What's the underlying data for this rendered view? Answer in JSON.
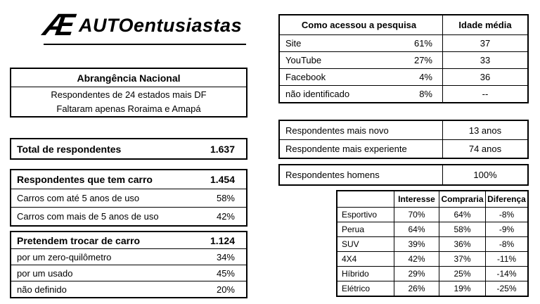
{
  "logo": {
    "monogram": "Æ",
    "auto": "AUTO",
    "entusiastas": "entusiastas"
  },
  "coverage": {
    "title": "Abrangência Nacional",
    "line1": "Respondentes de 24 estados mais DF",
    "line2": "Faltaram apenas Roraima e Amapá"
  },
  "total": {
    "label": "Total de respondentes",
    "value": "1.637"
  },
  "have_car": {
    "label": "Respondentes que tem carro",
    "value": "1.454",
    "rows": [
      {
        "label": "Carros com até 5 anos de uso",
        "value": "58%"
      },
      {
        "label": "Carros com mais de 5 anos de uso",
        "value": "42%"
      }
    ]
  },
  "trade": {
    "label": "Pretendem trocar de carro",
    "value": "1.124",
    "rows": [
      {
        "label": "por um zero-quilômetro",
        "value": "34%"
      },
      {
        "label": "por um usado",
        "value": "45%"
      },
      {
        "label": "não definido",
        "value": "20%"
      }
    ]
  },
  "access": {
    "title": "Como acessou a pesquisa",
    "age_title": "Idade média",
    "rows": [
      {
        "label": "Site",
        "pct": "61%",
        "age": "37"
      },
      {
        "label": "YouTube",
        "pct": "27%",
        "age": "33"
      },
      {
        "label": "Facebook",
        "pct": "4%",
        "age": "36"
      },
      {
        "label": "não identificado",
        "pct": "8%",
        "age": "--"
      }
    ]
  },
  "extremes": {
    "rows": [
      {
        "label": "Respondentes mais novo",
        "value": "13 anos"
      },
      {
        "label": "Respondente mais experiente",
        "value": "74 anos"
      }
    ]
  },
  "gender": {
    "label": "Respondentes homens",
    "value": "100%"
  },
  "interest": {
    "col_interest": "Interesse",
    "col_buy": "Compraria",
    "col_diff": "Diferença",
    "rows": [
      {
        "label": "Esportivo",
        "interest": "70%",
        "buy": "64%",
        "diff": "-8%"
      },
      {
        "label": "Perua",
        "interest": "64%",
        "buy": "58%",
        "diff": "-9%"
      },
      {
        "label": "SUV",
        "interest": "39%",
        "buy": "36%",
        "diff": "-8%"
      },
      {
        "label": "4X4",
        "interest": "42%",
        "buy": "37%",
        "diff": "-11%"
      },
      {
        "label": "Híbrido",
        "interest": "29%",
        "buy": "25%",
        "diff": "-14%"
      },
      {
        "label": "Elétrico",
        "interest": "26%",
        "buy": "19%",
        "diff": "-25%"
      }
    ]
  }
}
